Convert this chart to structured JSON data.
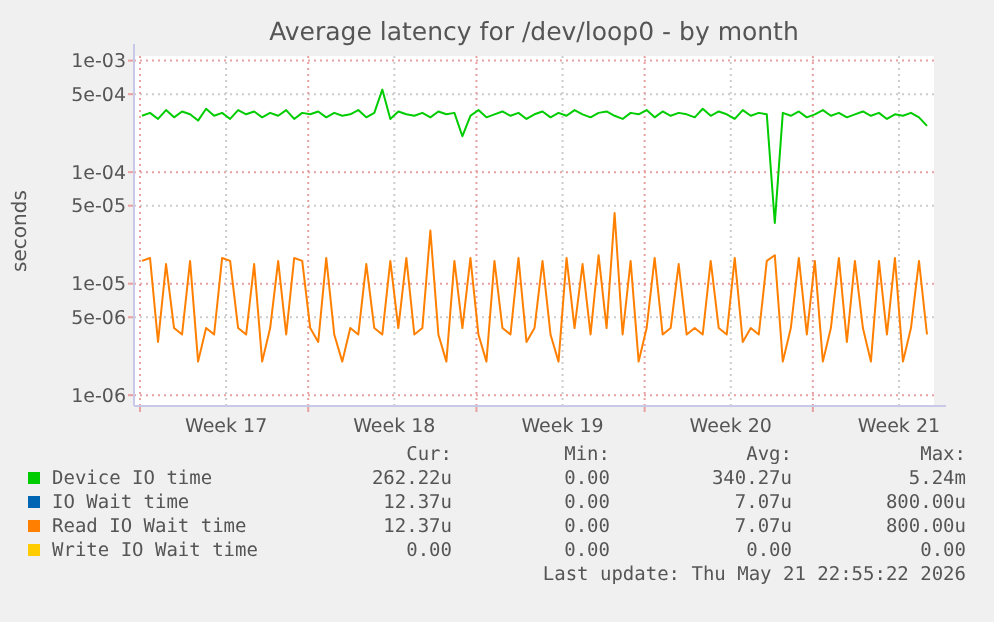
{
  "chart_data": {
    "type": "line",
    "title": "Average latency for /dev/loop0 - by month",
    "ylabel": "seconds",
    "log": "y",
    "grid": true,
    "legend": "bottom",
    "marker": "none",
    "line_style": "solid",
    "xlim": [
      "2026-04-19T18:00",
      "2026-05-23T01:00"
    ],
    "xticks": [
      {
        "value": "2026-04-20",
        "label": null
      },
      {
        "value": "2026-04-23T14:00",
        "label": "Week 17"
      },
      {
        "value": "2026-04-27",
        "label": null
      },
      {
        "value": "2026-04-30T14:00",
        "label": "Week 18"
      },
      {
        "value": "2026-05-04",
        "label": null
      },
      {
        "value": "2026-05-07T14:00",
        "label": "Week 19"
      },
      {
        "value": "2026-05-11",
        "label": null
      },
      {
        "value": "2026-05-14T14:00",
        "label": "Week 20"
      },
      {
        "value": "2026-05-18",
        "label": null
      },
      {
        "value": "2026-05-21T14:00",
        "label": "Week 21"
      }
    ],
    "ylim": [
      8e-07,
      0.0011
    ],
    "yticks": [
      {
        "value": 1e-06,
        "label": "1e-06"
      },
      {
        "value": 5e-06,
        "label": "5e-06"
      },
      {
        "value": 1e-05,
        "label": "1e-05"
      },
      {
        "value": 5e-05,
        "label": "5e-05"
      },
      {
        "value": 0.0001,
        "label": "1e-04"
      },
      {
        "value": 0.0005,
        "label": "5e-04"
      },
      {
        "value": 0.001,
        "label": "1e-03"
      }
    ],
    "x": [
      "2026-04-20T02:00",
      "2026-04-20T10:00",
      "2026-04-20T18:00",
      "2026-04-21T02:00",
      "2026-04-21T10:00",
      "2026-04-21T18:00",
      "2026-04-22T02:00",
      "2026-04-22T10:00",
      "2026-04-22T18:00",
      "2026-04-23T02:00",
      "2026-04-23T10:00",
      "2026-04-23T18:00",
      "2026-04-24T02:00",
      "2026-04-24T10:00",
      "2026-04-24T18:00",
      "2026-04-25T02:00",
      "2026-04-25T10:00",
      "2026-04-25T18:00",
      "2026-04-26T02:00",
      "2026-04-26T10:00",
      "2026-04-26T18:00",
      "2026-04-27T02:00",
      "2026-04-27T10:00",
      "2026-04-27T18:00",
      "2026-04-28T02:00",
      "2026-04-28T10:00",
      "2026-04-28T18:00",
      "2026-04-29T02:00",
      "2026-04-29T10:00",
      "2026-04-29T18:00",
      "2026-04-30T02:00",
      "2026-04-30T10:00",
      "2026-04-30T18:00",
      "2026-05-01T02:00",
      "2026-05-01T10:00",
      "2026-05-01T18:00",
      "2026-05-02T02:00",
      "2026-05-02T10:00",
      "2026-05-02T18:00",
      "2026-05-03T02:00",
      "2026-05-03T10:00",
      "2026-05-03T18:00",
      "2026-05-04T02:00",
      "2026-05-04T10:00",
      "2026-05-04T18:00",
      "2026-05-05T02:00",
      "2026-05-05T10:00",
      "2026-05-05T18:00",
      "2026-05-06T02:00",
      "2026-05-06T10:00",
      "2026-05-06T18:00",
      "2026-05-07T02:00",
      "2026-05-07T10:00",
      "2026-05-07T18:00",
      "2026-05-08T02:00",
      "2026-05-08T10:00",
      "2026-05-08T18:00",
      "2026-05-09T02:00",
      "2026-05-09T10:00",
      "2026-05-09T18:00",
      "2026-05-10T02:00",
      "2026-05-10T10:00",
      "2026-05-10T18:00",
      "2026-05-11T02:00",
      "2026-05-11T10:00",
      "2026-05-11T18:00",
      "2026-05-12T02:00",
      "2026-05-12T10:00",
      "2026-05-12T18:00",
      "2026-05-13T02:00",
      "2026-05-13T10:00",
      "2026-05-13T18:00",
      "2026-05-14T02:00",
      "2026-05-14T10:00",
      "2026-05-14T18:00",
      "2026-05-15T02:00",
      "2026-05-15T10:00",
      "2026-05-15T18:00",
      "2026-05-16T02:00",
      "2026-05-16T10:00",
      "2026-05-16T18:00",
      "2026-05-17T02:00",
      "2026-05-17T10:00",
      "2026-05-17T18:00",
      "2026-05-18T02:00",
      "2026-05-18T10:00",
      "2026-05-18T18:00",
      "2026-05-19T02:00",
      "2026-05-19T10:00",
      "2026-05-19T18:00",
      "2026-05-20T02:00",
      "2026-05-20T10:00",
      "2026-05-20T18:00",
      "2026-05-21T02:00",
      "2026-05-21T10:00",
      "2026-05-21T18:00",
      "2026-05-22T02:00",
      "2026-05-22T10:00",
      "2026-05-22T18:00"
    ],
    "series": [
      {
        "name": "Device IO time",
        "color": "#00cc00",
        "values": [
          0.00032,
          0.00034,
          0.0003,
          0.00036,
          0.00031,
          0.00035,
          0.00033,
          0.00029,
          0.00037,
          0.00032,
          0.00034,
          0.0003,
          0.00036,
          0.00033,
          0.00035,
          0.00031,
          0.00034,
          0.00032,
          0.00036,
          0.0003,
          0.00034,
          0.00033,
          0.00035,
          0.00031,
          0.00034,
          0.00032,
          0.00033,
          0.00036,
          0.00031,
          0.00034,
          0.00055,
          0.0003,
          0.00035,
          0.00033,
          0.00032,
          0.00034,
          0.00031,
          0.00035,
          0.00033,
          0.00034,
          0.00021,
          0.00032,
          0.00036,
          0.00031,
          0.00033,
          0.00035,
          0.00032,
          0.00034,
          0.0003,
          0.00033,
          0.00035,
          0.00031,
          0.00034,
          0.00032,
          0.00036,
          0.00033,
          0.00031,
          0.00034,
          0.00035,
          0.00032,
          0.0003,
          0.00034,
          0.00033,
          0.00036,
          0.00031,
          0.00035,
          0.00032,
          0.00034,
          0.00033,
          0.00031,
          0.00037,
          0.00032,
          0.00035,
          0.00033,
          0.0003,
          0.00036,
          0.00032,
          0.00034,
          0.00033,
          3.5e-05,
          0.00034,
          0.00032,
          0.00035,
          0.00031,
          0.00033,
          0.00036,
          0.00032,
          0.00034,
          0.00031,
          0.00033,
          0.00035,
          0.00032,
          0.00034,
          0.0003,
          0.00033,
          0.00032,
          0.00034,
          0.00031,
          0.00026
        ]
      },
      {
        "name": "IO Wait time",
        "color": "#0066b3",
        "values": [
          null,
          null,
          null,
          null,
          null,
          null,
          null,
          null,
          null,
          null,
          null,
          null,
          null,
          null,
          null,
          null,
          null,
          null,
          null,
          null,
          null,
          null,
          null,
          null,
          null,
          null,
          null,
          null,
          null,
          null,
          null,
          null,
          null,
          null,
          null,
          null,
          null,
          null,
          null,
          null,
          null,
          null,
          null,
          null,
          null,
          null,
          null,
          null,
          null,
          null,
          null,
          null,
          null,
          null,
          null,
          null,
          null,
          null,
          null,
          null,
          null,
          null,
          null,
          null,
          null,
          null,
          null,
          null,
          null,
          null,
          null,
          null,
          null,
          null,
          null,
          null,
          null,
          null,
          null,
          null,
          null,
          null,
          null,
          null,
          null,
          null,
          null,
          null,
          null,
          null,
          null,
          null,
          null,
          null,
          null,
          null,
          null,
          null,
          null
        ]
      },
      {
        "name": "Read IO Wait time",
        "color": "#ff8000",
        "values": [
          1.6e-05,
          1.7e-05,
          3e-06,
          1.5e-05,
          4e-06,
          3.5e-06,
          1.6e-05,
          2e-06,
          4e-06,
          3.5e-06,
          1.7e-05,
          1.6e-05,
          4e-06,
          3.5e-06,
          1.5e-05,
          2e-06,
          4e-06,
          1.6e-05,
          3.5e-06,
          1.7e-05,
          1.6e-05,
          4e-06,
          3e-06,
          1.7e-05,
          3.5e-06,
          2e-06,
          4e-06,
          3.5e-06,
          1.5e-05,
          4e-06,
          3.5e-06,
          1.6e-05,
          4e-06,
          1.7e-05,
          3.5e-06,
          4e-06,
          3e-05,
          3.5e-06,
          2e-06,
          1.6e-05,
          4e-06,
          1.7e-05,
          3.5e-06,
          2e-06,
          1.6e-05,
          4e-06,
          3.5e-06,
          1.7e-05,
          3e-06,
          4e-06,
          1.6e-05,
          3.5e-06,
          2e-06,
          1.7e-05,
          4e-06,
          1.5e-05,
          3.5e-06,
          1.8e-05,
          4e-06,
          4.3e-05,
          3.5e-06,
          1.6e-05,
          2e-06,
          4e-06,
          1.7e-05,
          3.5e-06,
          4e-06,
          1.5e-05,
          3.5e-06,
          4e-06,
          3.5e-06,
          1.6e-05,
          4e-06,
          3.5e-06,
          1.7e-05,
          3e-06,
          4e-06,
          3.5e-06,
          1.6e-05,
          1.8e-05,
          2e-06,
          4e-06,
          1.7e-05,
          3.5e-06,
          1.6e-05,
          2e-06,
          4e-06,
          1.7e-05,
          3e-06,
          1.6e-05,
          4e-06,
          2e-06,
          1.6e-05,
          3.5e-06,
          1.7e-05,
          2e-06,
          4e-06,
          1.6e-05,
          3.5e-06
        ]
      },
      {
        "name": "Write IO Wait time",
        "color": "#ffcc00",
        "values": [
          null,
          null,
          null,
          null,
          null,
          null,
          null,
          null,
          null,
          null,
          null,
          null,
          null,
          null,
          null,
          null,
          null,
          null,
          null,
          null,
          null,
          null,
          null,
          null,
          null,
          null,
          null,
          null,
          null,
          null,
          null,
          null,
          null,
          null,
          null,
          null,
          null,
          null,
          null,
          null,
          null,
          null,
          null,
          null,
          null,
          null,
          null,
          null,
          null,
          null,
          null,
          null,
          null,
          null,
          null,
          null,
          null,
          null,
          null,
          null,
          null,
          null,
          null,
          null,
          null,
          null,
          null,
          null,
          null,
          null,
          null,
          null,
          null,
          null,
          null,
          null,
          null,
          null,
          null,
          null,
          null,
          null,
          null,
          null,
          null,
          null,
          null,
          null,
          null,
          null,
          null,
          null,
          null,
          null,
          null,
          null,
          null,
          null,
          null
        ]
      }
    ],
    "annotations": [
      "Cur:",
      "Min:",
      "Avg:",
      "Max:",
      "262.22u",
      "0.00",
      "340.27u",
      "5.24m",
      "12.37u",
      "0.00",
      "7.07u",
      "800.00u",
      "12.37u",
      "0.00",
      "7.07u",
      "800.00u",
      "0.00",
      "0.00",
      "0.00",
      "0.00",
      "Last update: Thu May 21 22:55:22 2026"
    ]
  }
}
